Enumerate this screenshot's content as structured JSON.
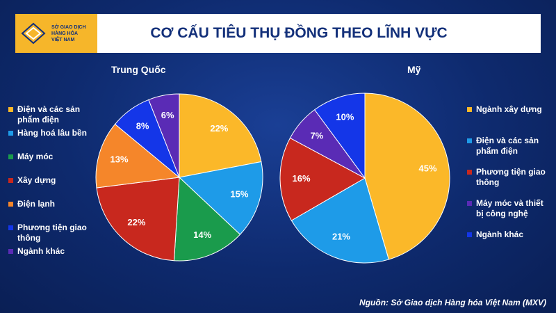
{
  "header": {
    "logo": [
      "SỞ GIAO DỊCH",
      "HÀNG HÓA",
      "VIỆT NAM"
    ],
    "title": "CƠ CẤU TIÊU THỤ ĐỒNG THEO LĨNH VỰC"
  },
  "chart_data": [
    {
      "type": "pie",
      "title": "Trung Quốc",
      "categories": [
        "Điện và các sản phẩm điện",
        "Hàng hoá lâu bền",
        "Máy móc",
        "Xây dựng",
        "Điện lạnh",
        "Phương tiện giao thông",
        "Ngành khác"
      ],
      "values": [
        22,
        15,
        14,
        22,
        13,
        8,
        6
      ],
      "value_labels": [
        "22%",
        "15%",
        "14%",
        "22%",
        "13%",
        "8%",
        "6%"
      ],
      "colors": [
        "#fbb829",
        "#1e9be8",
        "#1a9b4c",
        "#c8281e",
        "#f5862a",
        "#1436e8",
        "#5a2bb5"
      ]
    },
    {
      "type": "pie",
      "title": "Mỹ",
      "categories": [
        "Ngành xây dựng",
        "Điện và các sản phẩm điện",
        "Phương tiện giao thông",
        "Máy móc và thiết bị công nghệ",
        "Ngành khác"
      ],
      "values": [
        45,
        21,
        16,
        7,
        10
      ],
      "value_labels": [
        "45%",
        "21%",
        "16%",
        "7%",
        "10%"
      ],
      "colors": [
        "#fbb829",
        "#1e9be8",
        "#c8281e",
        "#5a2bb5",
        "#1436e8"
      ]
    }
  ],
  "source": "Nguồn: Sở Giao dịch Hàng hóa Việt Nam (MXV)"
}
